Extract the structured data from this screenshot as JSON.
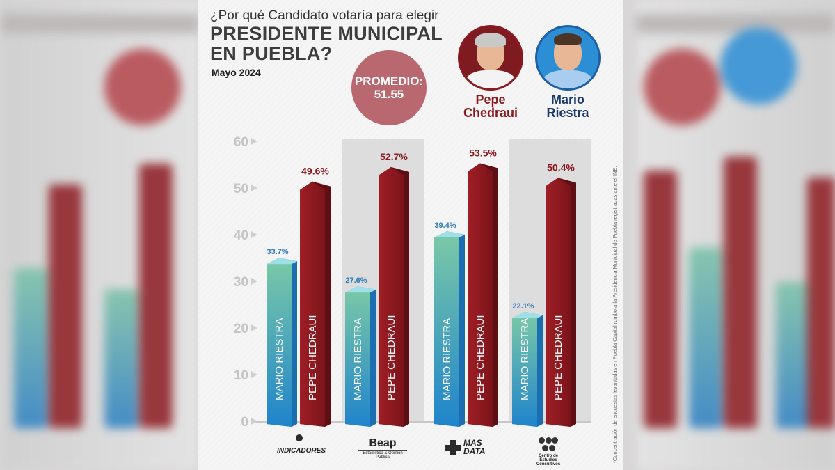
{
  "header": {
    "question": "¿Por qué Candidato votaría para elegir",
    "title_line1": "PRESIDENTE MUNICIPAL",
    "title_line2": "EN PUEBLA?",
    "date": "Mayo 2024"
  },
  "promedio": {
    "label": "PROMEDIO:",
    "value": "51.55"
  },
  "candidates": [
    {
      "first": "Pepe",
      "last": "Chedraui",
      "color": "#8b1a20"
    },
    {
      "first": "Mario",
      "last": "Riestra",
      "color": "#1c3c6d"
    }
  ],
  "chart_data": {
    "type": "bar",
    "categories": [
      "Indicadores",
      "Beap",
      "Mas Data",
      "Centro de Estudios Consultivos"
    ],
    "series": [
      {
        "name": "MARIO RIESTRA",
        "values": [
          33.7,
          27.6,
          39.4,
          22.1
        ],
        "color": "#2a8fd0"
      },
      {
        "name": "PEPE CHEDRAUI",
        "values": [
          49.6,
          52.7,
          53.5,
          50.4
        ],
        "color": "#8b1a20"
      }
    ],
    "value_labels": {
      "MARIO RIESTRA": [
        "33.7%",
        "27.6%",
        "39.4%",
        "22.1%"
      ],
      "PEPE CHEDRAUI": [
        "49.6%",
        "52.7%",
        "53.5%",
        "50.4%"
      ]
    },
    "yticks": [
      "0",
      "10",
      "20",
      "30",
      "40",
      "50",
      "60"
    ],
    "ylim": [
      0,
      60
    ],
    "title": "",
    "xlabel": "",
    "ylabel": ""
  },
  "pollsters": {
    "indicadores": "INDICADORES",
    "beap_big": "Beap",
    "beap_small": "Estadística & Opinión Pública",
    "mas_line1": "MAS",
    "mas_line2": "DATA",
    "cec_line1": "Centro de Estudios",
    "cec_line2": "Consultivos"
  },
  "sidenote": "*Concentración de encuestas levantadas en Puebla Capital rumbo a la Presidencia Municipal de Puebla registradas ante el INE.",
  "colors": {
    "red": "#8b1a20",
    "blue": "#2a8fd0",
    "teal": "#6fc2ae",
    "promedio": "#b8686e"
  }
}
